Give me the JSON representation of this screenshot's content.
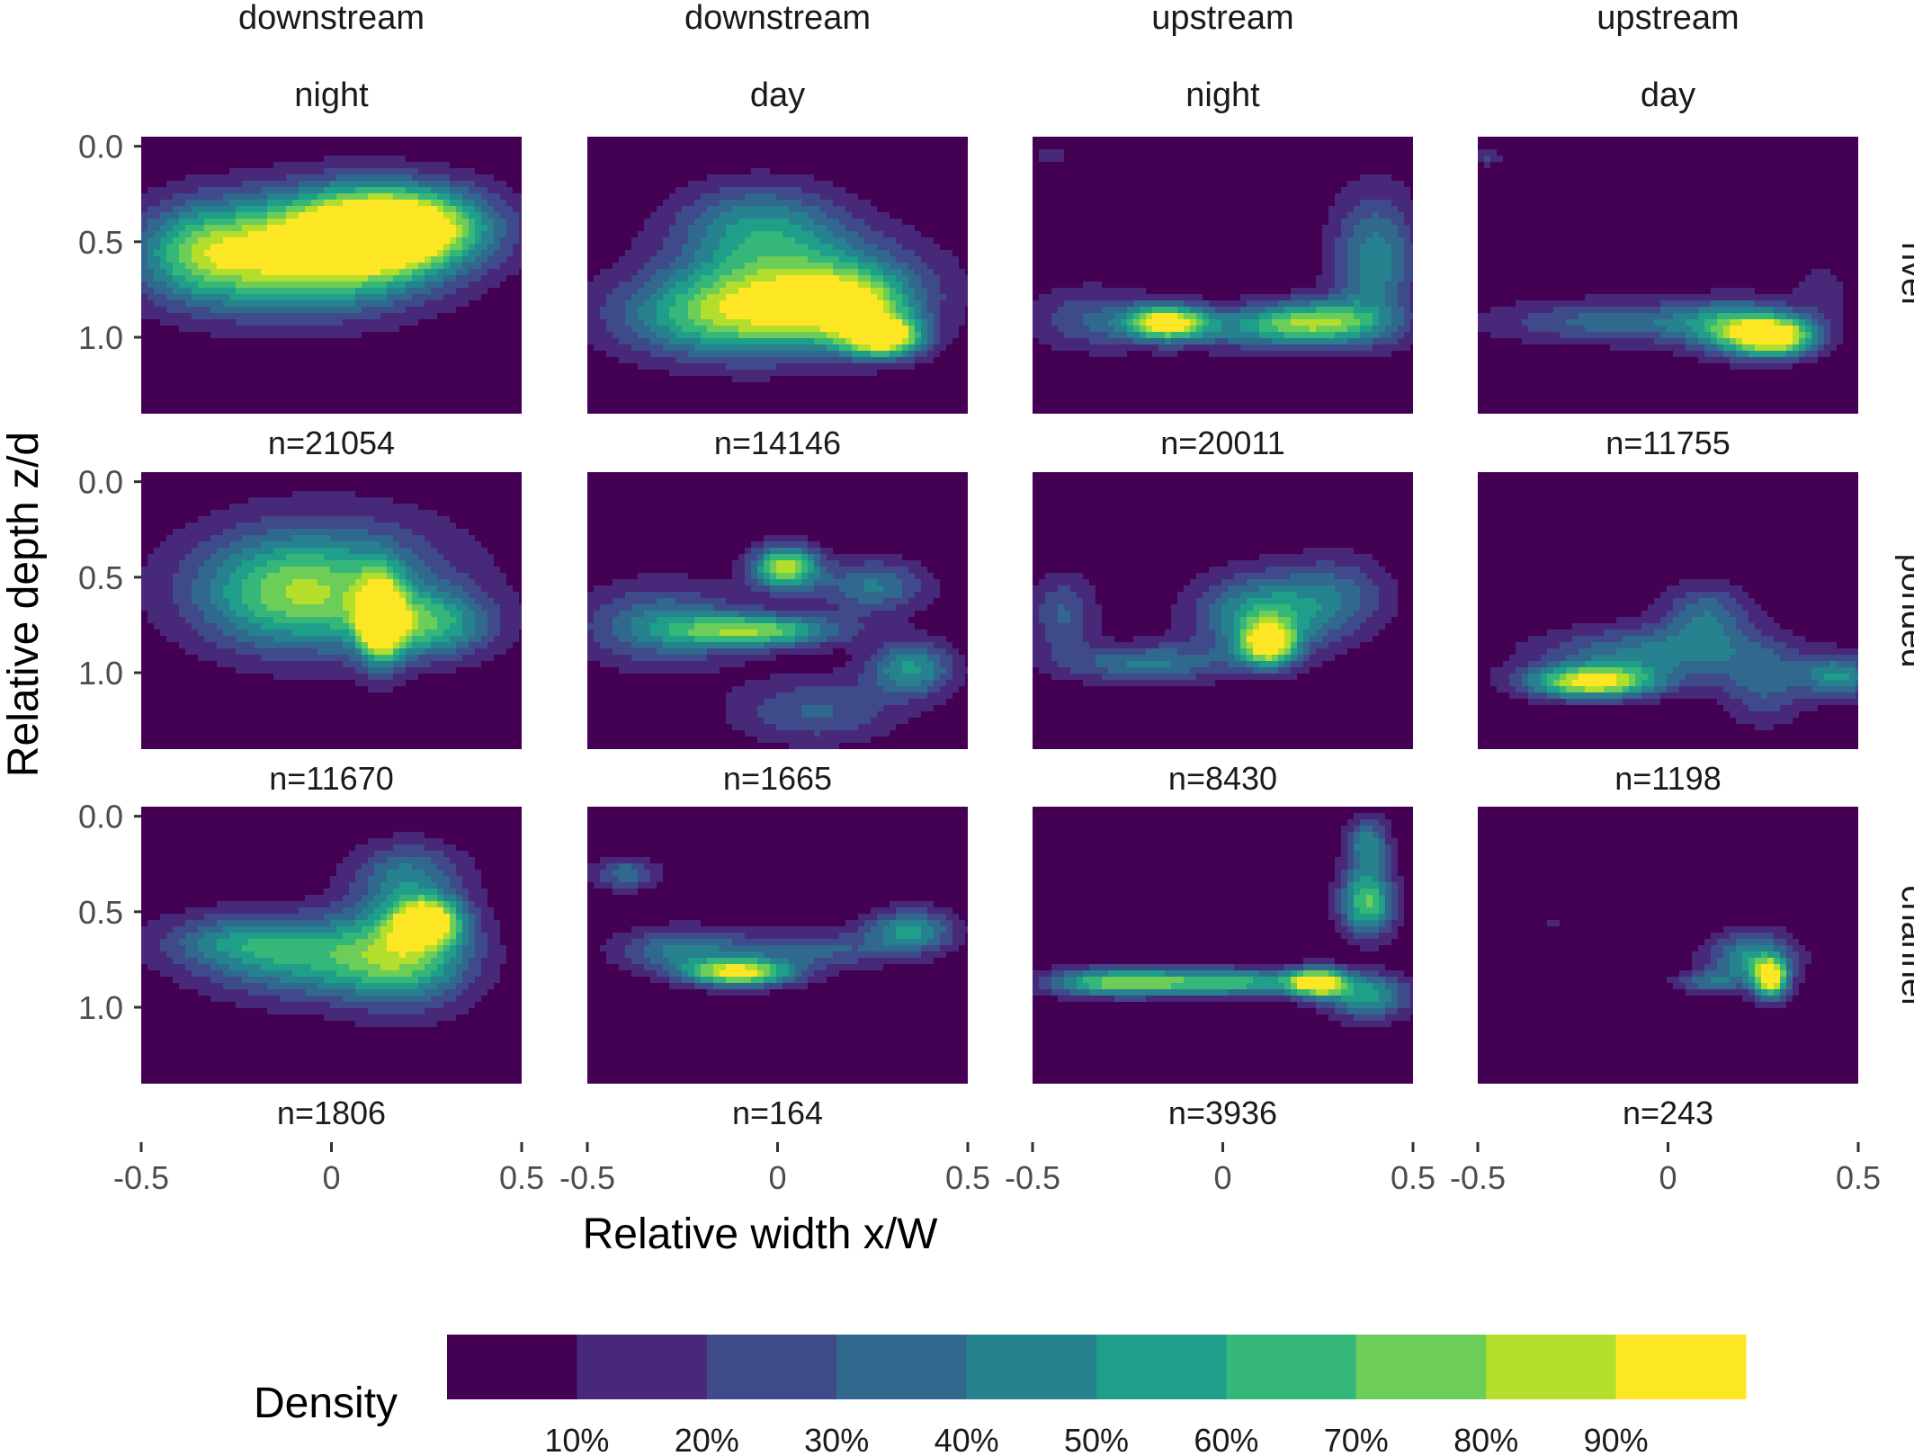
{
  "chart_data": {
    "type": "heatmap",
    "subtype": "filled density contour (faceted)",
    "xlabel": "Relative width x/W",
    "ylabel": "Relative depth z/d",
    "xlim": [
      -0.5,
      0.5
    ],
    "ylim": [
      1.4,
      -0.05
    ],
    "y_reversed": true,
    "x_ticks": [
      -0.5,
      0,
      0.5
    ],
    "x_tick_labels": [
      "-0.5",
      "0",
      "0.5"
    ],
    "y_ticks": [
      0.0,
      0.5,
      1.0
    ],
    "y_tick_labels": [
      "0.0",
      "0.5",
      "1.0"
    ],
    "grid": false,
    "legend_position": "bottom",
    "column_headers": [
      {
        "line1": "downstream",
        "line2": "night"
      },
      {
        "line1": "downstream",
        "line2": "day"
      },
      {
        "line1": "upstream",
        "line2": "night"
      },
      {
        "line1": "upstream",
        "line2": "day"
      }
    ],
    "row_headers": [
      "river",
      "ponded",
      "channel"
    ],
    "n_labels": [
      [
        "n=21054",
        "n=14146",
        "n=20011",
        "n=11755"
      ],
      [
        "n=11670",
        "n=1665",
        "n=8430",
        "n=1198"
      ],
      [
        "n=1806",
        "n=164",
        "n=3936",
        "n=243"
      ]
    ],
    "legend": {
      "title": "Density",
      "colors": [
        "#440154",
        "#482878",
        "#3E4A89",
        "#31688E",
        "#26828E",
        "#1F9E89",
        "#35B779",
        "#6DCD59",
        "#B4DE2C",
        "#FDE725"
      ],
      "breaks": [
        "10%",
        "20%",
        "30%",
        "40%",
        "50%",
        "60%",
        "70%",
        "80%",
        "90%"
      ]
    },
    "panels": [
      [
        {
          "peaks": [
            [
              0.18,
              0.42,
              0.9,
              0.16,
              0.14
            ],
            [
              -0.12,
              0.6,
              0.55,
              0.22,
              0.2
            ],
            [
              -0.35,
              0.55,
              0.45,
              0.12,
              0.18
            ],
            [
              0.05,
              0.5,
              0.6,
              0.2,
              0.2
            ]
          ]
        },
        {
          "peaks": [
            [
              0.28,
              1.0,
              0.9,
              0.07,
              0.07
            ],
            [
              0.05,
              0.75,
              0.7,
              0.22,
              0.2
            ],
            [
              -0.15,
              0.9,
              0.5,
              0.2,
              0.15
            ],
            [
              -0.05,
              0.4,
              0.4,
              0.15,
              0.15
            ],
            [
              0.2,
              0.85,
              0.55,
              0.1,
              0.12
            ]
          ]
        },
        {
          "peaks": [
            [
              -0.15,
              0.92,
              0.85,
              0.07,
              0.06
            ],
            [
              0.25,
              0.92,
              0.6,
              0.12,
              0.08
            ],
            [
              0.05,
              0.95,
              0.35,
              0.2,
              0.08
            ],
            [
              0.4,
              0.6,
              0.45,
              0.08,
              0.25
            ],
            [
              -0.35,
              0.9,
              0.25,
              0.12,
              0.12
            ],
            [
              -0.45,
              0.05,
              0.15,
              0.04,
              0.04
            ]
          ]
        },
        {
          "peaks": [
            [
              0.28,
              1.0,
              0.9,
              0.08,
              0.07
            ],
            [
              -0.1,
              0.92,
              0.35,
              0.25,
              0.08
            ],
            [
              0.18,
              0.95,
              0.45,
              0.1,
              0.1
            ],
            [
              -0.47,
              0.06,
              0.2,
              0.03,
              0.03
            ],
            [
              0.4,
              0.75,
              0.15,
              0.05,
              0.1
            ]
          ]
        }
      ],
      [
        {
          "peaks": [
            [
              0.13,
              0.72,
              0.9,
              0.04,
              0.16
            ],
            [
              0.25,
              0.75,
              0.55,
              0.12,
              0.12
            ],
            [
              -0.1,
              0.6,
              0.5,
              0.18,
              0.2
            ],
            [
              0.0,
              0.5,
              0.35,
              0.25,
              0.25
            ]
          ]
        },
        {
          "peaks": [
            [
              0.02,
              0.45,
              0.85,
              0.06,
              0.08
            ],
            [
              -0.05,
              0.78,
              0.7,
              0.15,
              0.06
            ],
            [
              0.35,
              0.98,
              0.5,
              0.08,
              0.1
            ],
            [
              -0.3,
              0.75,
              0.4,
              0.15,
              0.15
            ],
            [
              0.25,
              0.55,
              0.4,
              0.1,
              0.1
            ],
            [
              0.1,
              1.2,
              0.3,
              0.15,
              0.12
            ]
          ]
        },
        {
          "peaks": [
            [
              0.12,
              0.85,
              0.85,
              0.05,
              0.08
            ],
            [
              0.1,
              0.7,
              0.55,
              0.12,
              0.15
            ],
            [
              -0.2,
              0.95,
              0.4,
              0.15,
              0.07
            ],
            [
              -0.42,
              0.7,
              0.3,
              0.06,
              0.15
            ],
            [
              0.3,
              0.6,
              0.3,
              0.1,
              0.15
            ]
          ]
        },
        {
          "peaks": [
            [
              -0.2,
              1.05,
              0.9,
              0.12,
              0.06
            ],
            [
              0.45,
              1.02,
              0.5,
              0.07,
              0.08
            ],
            [
              -0.05,
              0.9,
              0.4,
              0.2,
              0.1
            ],
            [
              0.1,
              0.7,
              0.35,
              0.08,
              0.12
            ],
            [
              0.25,
              1.05,
              0.3,
              0.08,
              0.15
            ]
          ]
        }
      ],
      [
        {
          "peaks": [
            [
              0.25,
              0.55,
              0.85,
              0.06,
              0.08
            ],
            [
              0.2,
              0.7,
              0.6,
              0.12,
              0.2
            ],
            [
              -0.05,
              0.75,
              0.5,
              0.2,
              0.15
            ],
            [
              -0.25,
              0.65,
              0.3,
              0.15,
              0.1
            ],
            [
              0.2,
              0.3,
              0.35,
              0.1,
              0.12
            ]
          ]
        },
        {
          "peaks": [
            [
              -0.1,
              0.82,
              0.9,
              0.1,
              0.05
            ],
            [
              -0.25,
              0.7,
              0.4,
              0.12,
              0.08
            ],
            [
              0.35,
              0.6,
              0.5,
              0.08,
              0.08
            ],
            [
              -0.4,
              0.3,
              0.35,
              0.06,
              0.06
            ],
            [
              0.1,
              0.7,
              0.3,
              0.15,
              0.07
            ]
          ]
        },
        {
          "peaks": [
            [
              0.25,
              0.87,
              0.85,
              0.05,
              0.05
            ],
            [
              0.0,
              0.87,
              0.65,
              0.2,
              0.05
            ],
            [
              -0.3,
              0.87,
              0.55,
              0.12,
              0.05
            ],
            [
              0.38,
              0.45,
              0.7,
              0.05,
              0.12
            ],
            [
              0.38,
              0.15,
              0.45,
              0.04,
              0.1
            ],
            [
              0.38,
              0.95,
              0.5,
              0.08,
              0.08
            ]
          ]
        },
        {
          "peaks": [
            [
              0.27,
              0.85,
              0.9,
              0.03,
              0.07
            ],
            [
              0.22,
              0.75,
              0.5,
              0.08,
              0.1
            ],
            [
              0.1,
              0.87,
              0.3,
              0.06,
              0.04
            ],
            [
              -0.3,
              0.55,
              0.15,
              0.02,
              0.02
            ]
          ]
        }
      ]
    ]
  }
}
